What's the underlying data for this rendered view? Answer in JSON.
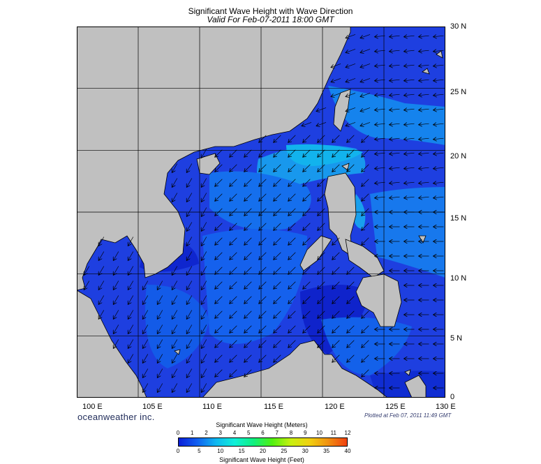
{
  "title": "Significant Wave Height with Wave Direction",
  "subtitle": "Valid For Feb-07-2011 18:00 GMT",
  "branding": "oceanweather inc.",
  "plotted_stamp": "Plotted at Feb 07, 2011 11:49 GMT",
  "map": {
    "lon_range": [
      100,
      130
    ],
    "lat_range": [
      0,
      30
    ],
    "lon_labels": [
      "100 E",
      "105 E",
      "110 E",
      "115 E",
      "120 E",
      "125 E",
      "130 E"
    ],
    "lat_labels": [
      "30 N",
      "25 N",
      "20 N",
      "15 N",
      "10 N",
      "5 N",
      "0"
    ],
    "grid": true,
    "arrow_direction": "toward west-southwest",
    "land_color": "#c0c0c0",
    "ocean_base_color": "#1e3fe0"
  },
  "colorbar": {
    "meters_label": "Significant Wave Height (Meters)",
    "feet_label": "Significant Wave Height (Feet)",
    "meters_ticks": [
      "0",
      "1",
      "2",
      "3",
      "4",
      "5",
      "6",
      "7",
      "8",
      "9",
      "10",
      "11",
      "12"
    ],
    "feet_ticks": [
      "0",
      "5",
      "10",
      "15",
      "20",
      "25",
      "30",
      "35",
      "40"
    ],
    "colors": [
      "#0a1ed8",
      "#1060f0",
      "#10b8f0",
      "#10f0d8",
      "#10f080",
      "#50f010",
      "#c8f010",
      "#f0d010",
      "#f09010",
      "#f04010"
    ]
  }
}
